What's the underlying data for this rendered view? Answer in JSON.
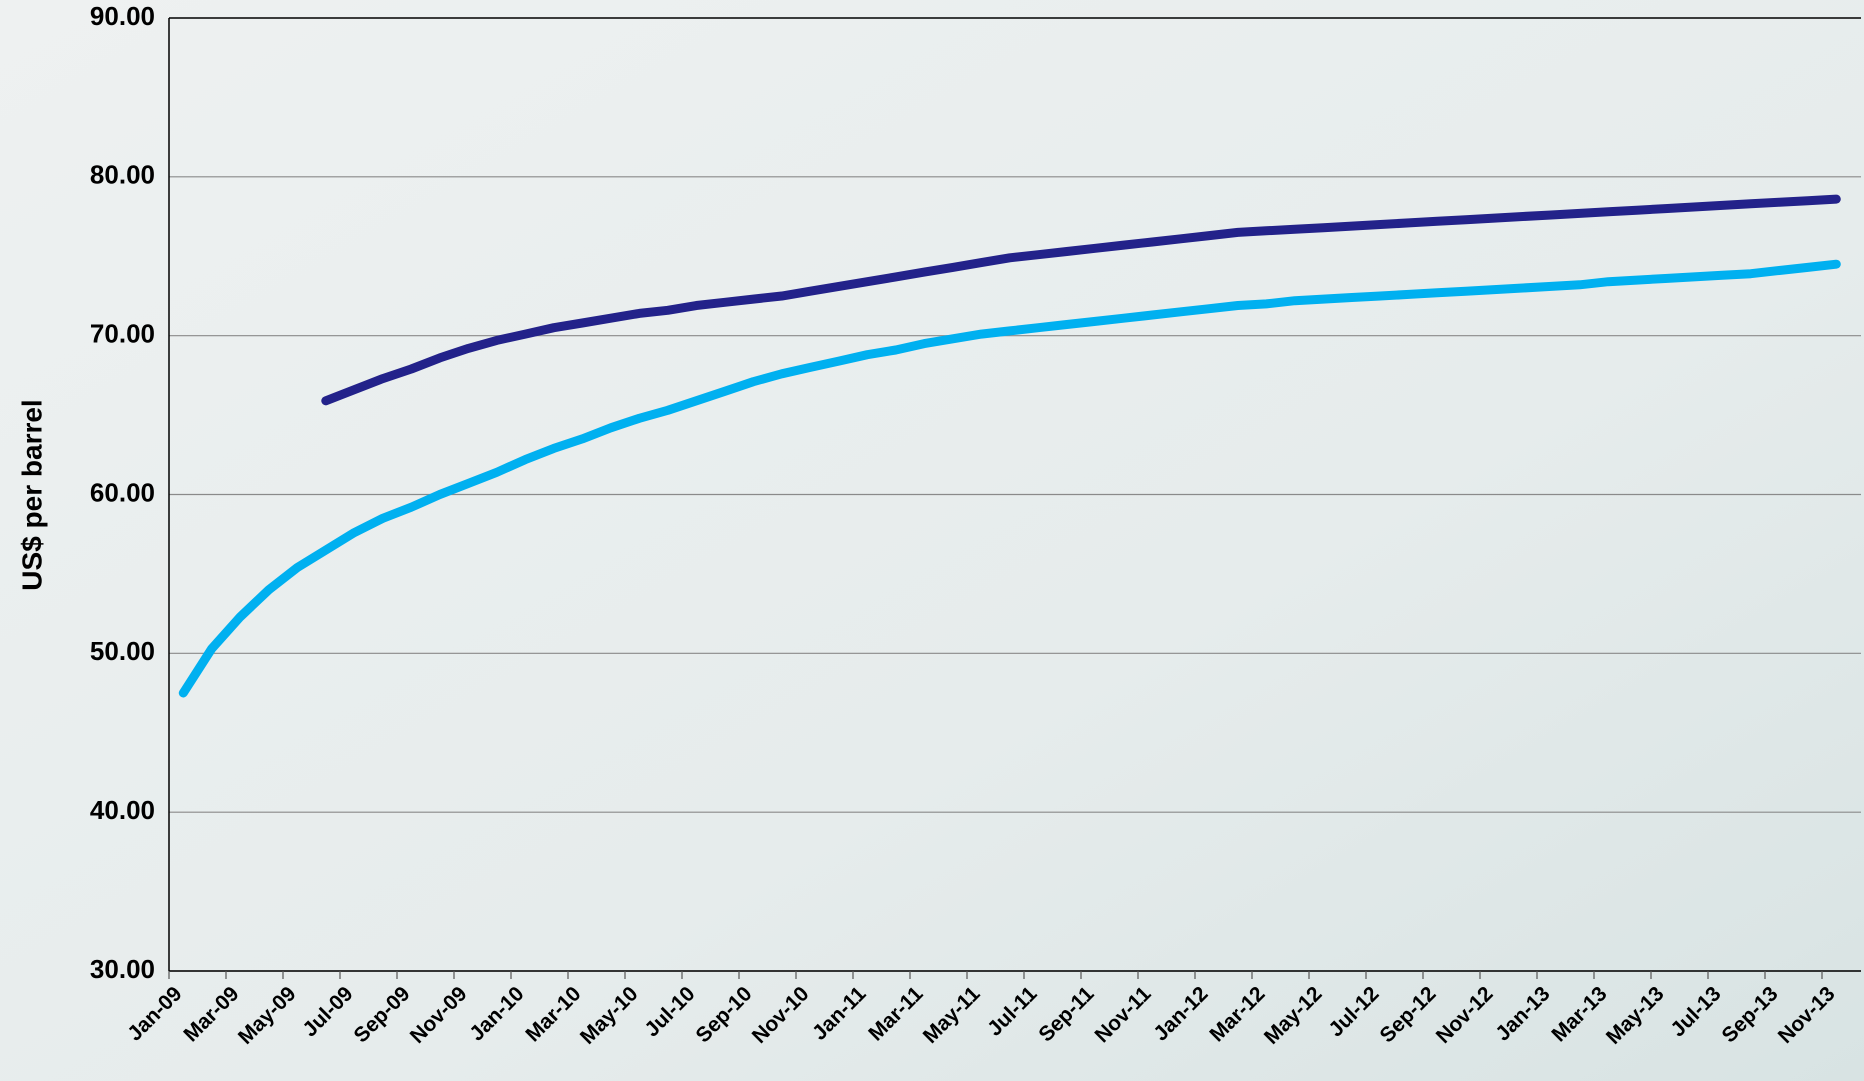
{
  "chart_data": {
    "type": "line",
    "y_label": "US$ per barrel",
    "categories": [
      "Jan-09",
      null,
      "Mar-09",
      null,
      "May-09",
      null,
      "Jul-09",
      null,
      "Sep-09",
      null,
      "Nov-09",
      null,
      "Jan-10",
      null,
      "Mar-10",
      null,
      "May-10",
      null,
      "Jul-10",
      null,
      "Sep-10",
      null,
      "Nov-10",
      null,
      "Jan-11",
      null,
      "Mar-11",
      null,
      "May-11",
      null,
      "Jul-11",
      null,
      "Sep-11",
      null,
      "Nov-11",
      null,
      "Jan-12",
      null,
      "Mar-12",
      null,
      "May-12",
      null,
      "Jul-12",
      null,
      "Sep-12",
      null,
      "Nov-12",
      null,
      "Jan-13",
      null,
      "Mar-13",
      null,
      "May-13",
      null,
      "Jul-13",
      null,
      "Sep-13",
      null,
      "Nov-13"
    ],
    "series": [
      {
        "color": "#00b0f0",
        "values": [
          47.5,
          50.3,
          52.3,
          54.0,
          55.4,
          56.5,
          57.6,
          58.5,
          59.2,
          60.0,
          60.7,
          61.4,
          62.2,
          62.9,
          63.5,
          64.2,
          64.8,
          65.3,
          65.9,
          66.5,
          67.1,
          67.6,
          68.0,
          68.4,
          68.8,
          69.1,
          69.5,
          69.8,
          70.1,
          70.3,
          70.5,
          70.7,
          70.9,
          71.1,
          71.3,
          71.5,
          71.7,
          71.9,
          72.0,
          72.2,
          72.3,
          72.4,
          72.5,
          72.6,
          72.7,
          72.8,
          72.9,
          73.0,
          73.1,
          73.2,
          73.4,
          73.5,
          73.6,
          73.7,
          73.8,
          73.9,
          74.1,
          74.3,
          74.5
        ]
      },
      {
        "color": "#23228a",
        "values": [
          null,
          null,
          null,
          null,
          null,
          65.9,
          66.6,
          67.3,
          67.9,
          68.6,
          69.2,
          69.7,
          70.1,
          70.5,
          70.8,
          71.1,
          71.4,
          71.6,
          71.9,
          72.1,
          72.3,
          72.5,
          72.8,
          73.1,
          73.4,
          73.7,
          74.0,
          74.3,
          74.6,
          74.9,
          75.1,
          75.3,
          75.5,
          75.7,
          75.9,
          76.1,
          76.3,
          76.5,
          76.6,
          76.7,
          76.8,
          76.9,
          77.0,
          77.1,
          77.2,
          77.3,
          77.4,
          77.5,
          77.6,
          77.7,
          77.8,
          77.9,
          78.0,
          78.1,
          78.2,
          78.3,
          78.4,
          78.5,
          78.6
        ]
      }
    ],
    "ylim": [
      30,
      90
    ],
    "yticks": [
      {
        "value": 30,
        "label": "30.00"
      },
      {
        "value": 40,
        "label": "40.00"
      },
      {
        "value": 50,
        "label": "50.00"
      },
      {
        "value": 60,
        "label": "60.00"
      },
      {
        "value": 70,
        "label": "70.00"
      },
      {
        "value": 80,
        "label": "80.00"
      },
      {
        "value": 90,
        "label": "90.00"
      }
    ],
    "grid": true
  }
}
